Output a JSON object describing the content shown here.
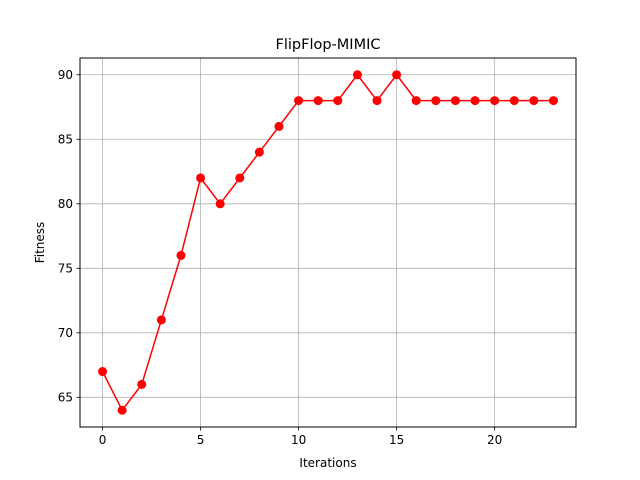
{
  "chart_data": {
    "type": "line",
    "title": "FlipFlop-MIMIC",
    "xlabel": "Iterations",
    "ylabel": "Fitness",
    "xlim": [
      -1.15,
      24.15
    ],
    "ylim": [
      62.7,
      91.3
    ],
    "xticks": [
      0,
      5,
      10,
      15,
      20
    ],
    "yticks": [
      65,
      70,
      75,
      80,
      85,
      90
    ],
    "xtick_labels": [
      "0",
      "5",
      "10",
      "15",
      "20"
    ],
    "ytick_labels": [
      "65",
      "70",
      "75",
      "80",
      "85",
      "90"
    ],
    "grid": true,
    "series": [
      {
        "color": "#ff0000",
        "marker": "circle",
        "x": [
          0,
          1,
          2,
          3,
          4,
          5,
          6,
          7,
          8,
          9,
          10,
          11,
          12,
          13,
          14,
          15,
          16,
          17,
          18,
          19,
          20,
          21,
          22,
          23
        ],
        "y": [
          67,
          64,
          66,
          71,
          76,
          82,
          80,
          82,
          84,
          86,
          88,
          88,
          88,
          90,
          88,
          90,
          88,
          88,
          88,
          88,
          88,
          88,
          88,
          88
        ]
      }
    ]
  }
}
